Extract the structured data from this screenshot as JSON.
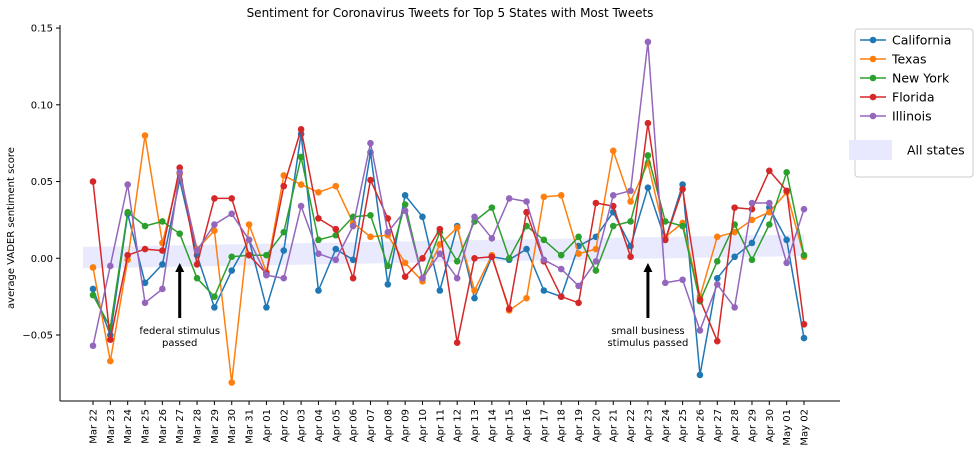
{
  "chart_data": {
    "type": "line",
    "title": "Sentiment for Coronavirus Tweets for Top 5 States with Most Tweets",
    "xlabel": "",
    "ylabel": "average VADER sentiment score",
    "ylim": [
      -0.093,
      0.152
    ],
    "yticks": [
      -0.05,
      0.0,
      0.05,
      0.1,
      0.15
    ],
    "ytick_labels": [
      "−0.05",
      "0.00",
      "0.05",
      "0.10",
      "0.15"
    ],
    "grid": false,
    "legend_position": "outside-right",
    "categories": [
      "Mar 22",
      "Mar 23",
      "Mar 24",
      "Mar 25",
      "Mar 26",
      "Mar 27",
      "Mar 28",
      "Mar 29",
      "Mar 30",
      "Mar 31",
      "Apr 01",
      "Apr 02",
      "Apr 03",
      "Apr 04",
      "Apr 05",
      "Apr 06",
      "Apr 07",
      "Apr 08",
      "Apr 09",
      "Apr 10",
      "Apr 11",
      "Apr 12",
      "Apr 13",
      "Apr 14",
      "Apr 15",
      "Apr 16",
      "Apr 17",
      "Apr 18",
      "Apr 19",
      "Apr 20",
      "Apr 21",
      "Apr 22",
      "Apr 23",
      "Apr 24",
      "Apr 25",
      "Apr 26",
      "Apr 27",
      "Apr 28",
      "Apr 29",
      "Apr 30",
      "May 01",
      "May 02"
    ],
    "series": [
      {
        "name": "California",
        "color": "#1f77b4",
        "values": [
          -0.02,
          -0.05,
          0.029,
          -0.016,
          -0.004,
          0.051,
          0.002,
          -0.032,
          -0.008,
          0.012,
          -0.032,
          0.005,
          0.081,
          -0.021,
          0.006,
          -0.001,
          0.069,
          -0.017,
          0.041,
          0.027,
          -0.021,
          0.021,
          -0.026,
          0.001,
          -0.001,
          0.006,
          -0.021,
          -0.025,
          0.008,
          0.014,
          0.03,
          0.008,
          0.046,
          0.012,
          0.048,
          -0.076,
          -0.013,
          0.001,
          0.01,
          0.033,
          0.012,
          -0.052
        ]
      },
      {
        "name": "Texas",
        "color": "#ff7f0e",
        "values": [
          -0.006,
          -0.067,
          -0.001,
          0.08,
          0.01,
          0.055,
          0.006,
          0.018,
          -0.081,
          0.022,
          -0.009,
          0.054,
          0.048,
          0.043,
          0.047,
          0.023,
          0.014,
          0.015,
          -0.003,
          -0.015,
          0.009,
          0.02,
          -0.021,
          0.002,
          -0.034,
          -0.026,
          0.04,
          0.041,
          0.003,
          0.006,
          0.07,
          0.037,
          0.062,
          0.014,
          0.023,
          -0.025,
          0.014,
          0.017,
          0.025,
          0.03,
          0.043,
          0.001
        ]
      },
      {
        "name": "New York",
        "color": "#2ca02c",
        "values": [
          -0.024,
          -0.045,
          0.03,
          0.021,
          0.024,
          0.016,
          -0.013,
          -0.025,
          0.001,
          0.002,
          0.002,
          0.017,
          0.066,
          0.012,
          0.015,
          0.027,
          0.028,
          -0.005,
          0.035,
          -0.013,
          0.017,
          -0.002,
          0.024,
          0.033,
          0.0,
          0.021,
          0.012,
          0.002,
          0.014,
          -0.008,
          0.021,
          0.024,
          0.067,
          0.024,
          0.021,
          -0.028,
          -0.002,
          0.022,
          -0.001,
          0.022,
          0.056,
          0.002
        ]
      },
      {
        "name": "Florida",
        "color": "#d62728",
        "values": [
          0.05,
          -0.053,
          0.002,
          0.006,
          0.005,
          0.059,
          -0.004,
          0.039,
          0.039,
          0.002,
          -0.01,
          0.047,
          0.084,
          0.026,
          0.019,
          -0.013,
          0.051,
          0.026,
          -0.012,
          0.0,
          0.019,
          -0.055,
          0.0,
          0.001,
          -0.033,
          0.03,
          -0.002,
          -0.025,
          -0.029,
          0.036,
          0.034,
          0.001,
          0.088,
          0.012,
          0.045,
          -0.027,
          -0.054,
          0.033,
          0.032,
          0.057,
          0.044,
          -0.043
        ]
      },
      {
        "name": "Illinois",
        "color": "#9467bd",
        "values": [
          -0.057,
          -0.005,
          0.048,
          -0.029,
          -0.02,
          0.056,
          0.005,
          0.022,
          0.029,
          0.012,
          -0.011,
          -0.013,
          0.034,
          0.003,
          -0.001,
          0.021,
          0.075,
          0.017,
          0.031,
          -0.013,
          0.003,
          -0.013,
          0.027,
          0.013,
          0.039,
          0.037,
          -0.001,
          -0.007,
          -0.018,
          -0.002,
          0.041,
          0.044,
          0.141,
          -0.016,
          -0.014,
          -0.047,
          -0.017,
          -0.032,
          0.036,
          0.036,
          -0.003,
          0.032
        ]
      }
    ],
    "band": {
      "name": "All states",
      "color": "#e8e8ff"
    },
    "annotations": [
      {
        "text_line1": "federal stimulus",
        "text_line2": "passed",
        "at": "Mar 27"
      },
      {
        "text_line1": "small business",
        "text_line2": "stimulus passed",
        "at": "Apr 23"
      }
    ]
  }
}
